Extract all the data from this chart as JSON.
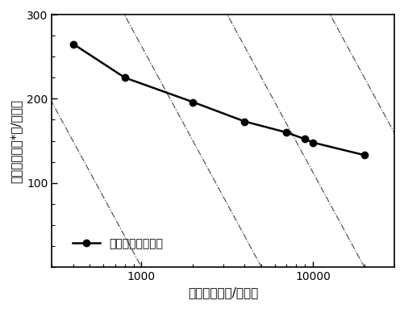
{
  "x_data": [
    400,
    800,
    2000,
    4000,
    7000,
    9000,
    10000,
    20000
  ],
  "y_data": [
    265,
    225,
    196,
    173,
    160,
    152,
    148,
    133
  ],
  "xlim": [
    300,
    30000
  ],
  "ylim": [
    0,
    300
  ],
  "yticks": [
    100,
    200,
    300
  ],
  "xticks_major": [
    1000,
    10000
  ],
  "xtick_labels": [
    "1000",
    "10000"
  ],
  "xlabel": "功率密度（瓦/公斤）",
  "ylabel": "能量密度（瓦*时/公斤）",
  "legend_label": "锶离子混合电容器",
  "line_color": "#000000",
  "marker_size": 6,
  "background_color": "#ffffff",
  "diag_slope": -375,
  "diag_offsets": [
    2.3,
    3.0,
    3.7,
    4.3,
    4.9,
    5.5
  ],
  "diag_color": "#555555",
  "diag_linewidth": 0.9,
  "font_size_labels": 11,
  "font_size_ticks": 10,
  "font_size_legend": 10
}
